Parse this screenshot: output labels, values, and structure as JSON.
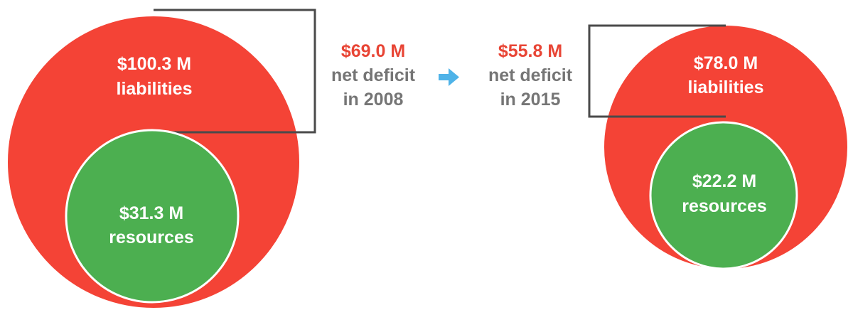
{
  "colors": {
    "liabilities": "#f44336",
    "resources": "#4caf50",
    "deficit_amount": "#e84535",
    "deficit_text": "#757575",
    "bracket": "#4a4a4a",
    "arrow": "#4fb3e8",
    "circle_label": "#ffffff",
    "circle_stroke": "#ffffff"
  },
  "year_2008": {
    "liabilities": {
      "value": 100.3,
      "amount_label": "$100.3 M",
      "label": "liabilities"
    },
    "resources": {
      "value": 31.3,
      "amount_label": "$31.3 M",
      "label": "resources"
    },
    "deficit": {
      "value": 69.0,
      "amount_label": "$69.0 M",
      "line1": "net deficit",
      "line2": "in 2008"
    }
  },
  "year_2015": {
    "liabilities": {
      "value": 78.0,
      "amount_label": "$78.0 M",
      "label": "liabilities"
    },
    "resources": {
      "value": 22.2,
      "amount_label": "$22.2 M",
      "label": "resources"
    },
    "deficit": {
      "value": 55.8,
      "amount_label": "$55.8 M",
      "line1": "net deficit",
      "line2": "in 2015"
    }
  },
  "transition_arrow": {
    "icon": "arrow-right-icon"
  }
}
